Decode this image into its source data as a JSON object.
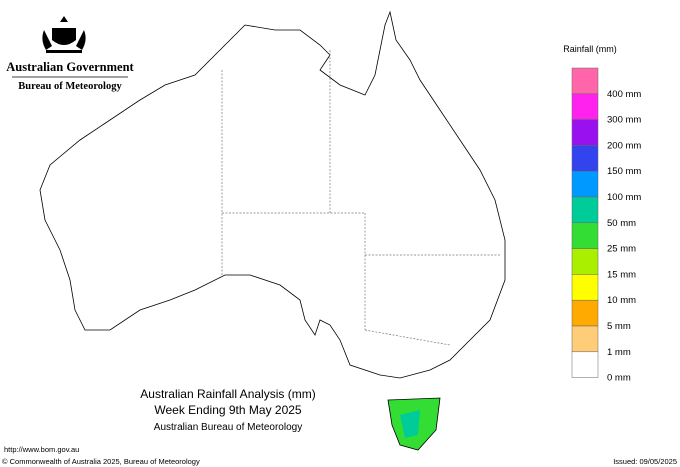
{
  "header": {
    "government": "Australian Government",
    "bureau": "Bureau of Meteorology"
  },
  "legend": {
    "title": "Rainfall (mm)",
    "items": [
      {
        "label": "400 mm",
        "color": "#ff66aa"
      },
      {
        "label": "300 mm",
        "color": "#ff22ee"
      },
      {
        "label": "200 mm",
        "color": "#9911ee"
      },
      {
        "label": "150 mm",
        "color": "#3344ee"
      },
      {
        "label": "100 mm",
        "color": "#0099ff"
      },
      {
        "label": "50 mm",
        "color": "#00cc99"
      },
      {
        "label": "25 mm",
        "color": "#33dd33"
      },
      {
        "label": "15 mm",
        "color": "#aaee00"
      },
      {
        "label": "10 mm",
        "color": "#ffff00"
      },
      {
        "label": "5 mm",
        "color": "#ffaa00"
      },
      {
        "label": "1 mm",
        "color": "#ffcc77"
      },
      {
        "label": "0 mm",
        "color": "#ffffff"
      }
    ]
  },
  "caption": {
    "line1": "Australian Rainfall Analysis (mm)",
    "line2": "Week Ending 9th May 2025",
    "line3": "Australian Bureau of Meteorology"
  },
  "footer": {
    "url": "http://www.bom.gov.au",
    "copyright": "© Commonwealth of Australia 2025, Bureau of Meteorology",
    "issued": "Issued: 09/05/2025"
  }
}
